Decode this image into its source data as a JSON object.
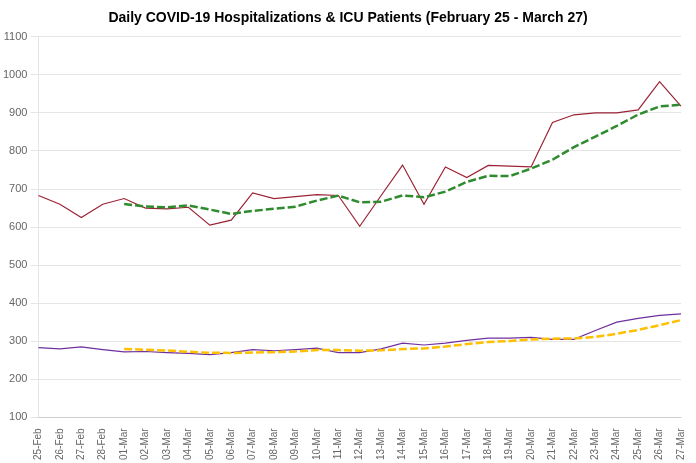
{
  "chart_data": {
    "type": "line",
    "title": "Daily COVID-19 Hospitalizations & ICU Patients (February 25 - March 27)",
    "categories": [
      "25-Feb",
      "26-Feb",
      "27-Feb",
      "28-Feb",
      "01-Mar",
      "02-Mar",
      "03-Mar",
      "04-Mar",
      "05-Mar",
      "06-Mar",
      "07-Mar",
      "08-Mar",
      "09-Mar",
      "10-Mar",
      "11-Mar",
      "12-Mar",
      "13-Mar",
      "14-Mar",
      "15-Mar",
      "16-Mar",
      "17-Mar",
      "18-Mar",
      "19-Mar",
      "20-Mar",
      "21-Mar",
      "22-Mar",
      "23-Mar",
      "24-Mar",
      "25-Mar",
      "26-Mar",
      "27-Mar"
    ],
    "series": [
      {
        "color": "#9b2335",
        "line_style": "solid",
        "values": [
          683,
          660,
          625,
          660,
          675,
          650,
          648,
          652,
          605,
          618,
          690,
          675,
          680,
          685,
          683,
          602,
          683,
          763,
          660,
          758,
          730,
          762,
          760,
          758,
          875,
          895,
          900,
          900,
          908,
          982,
          918
        ]
      },
      {
        "color": "#7030a0",
        "line_style": "solid",
        "values": [
          283,
          280,
          285,
          278,
          272,
          273,
          270,
          268,
          265,
          270,
          278,
          275,
          278,
          282,
          270,
          270,
          280,
          295,
          290,
          295,
          302,
          308,
          308,
          310,
          305,
          305,
          328,
          350,
          360,
          368,
          372
        ]
      },
      {
        "color": "#2e8b2e",
        "line_style": "dashed",
        "values": [
          null,
          null,
          null,
          null,
          660.6,
          654,
          651.6,
          657,
          646,
          634.6,
          642.6,
          648,
          653.6,
          669.6,
          682.6,
          665,
          666.6,
          683.2,
          678.2,
          693.2,
          718.8,
          734.6,
          734,
          753.6,
          777,
          810,
          837.6,
          865.6,
          895.6,
          917,
          921.6
        ]
      },
      {
        "color": "#ffc000",
        "line_style": "dashed",
        "values": [
          null,
          null,
          null,
          null,
          279.6,
          277.6,
          275.6,
          272.2,
          269.6,
          269.2,
          270.2,
          271.2,
          273.2,
          276.6,
          276.6,
          275,
          276,
          279.4,
          281,
          286,
          292.4,
          298,
          300.6,
          304.6,
          306.6,
          307.2,
          311.2,
          319.6,
          329.6,
          342.2,
          355.6
        ]
      }
    ],
    "ylim": [
      100,
      1100
    ],
    "yticks": [
      100,
      200,
      300,
      400,
      500,
      600,
      700,
      800,
      900,
      1000,
      1100
    ],
    "grid": true
  }
}
